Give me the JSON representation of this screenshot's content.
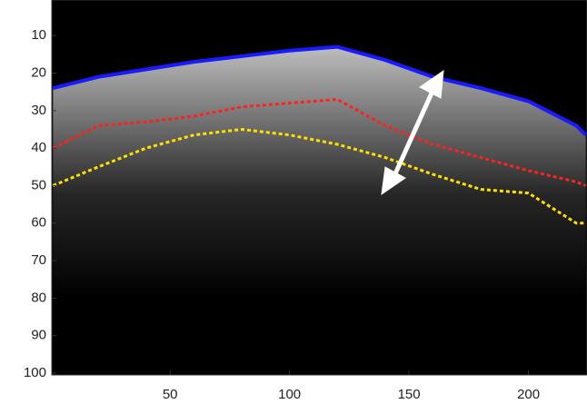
{
  "chart_data": {
    "type": "image",
    "x": [
      1,
      20,
      40,
      60,
      80,
      100,
      120,
      140,
      160,
      180,
      200,
      220,
      224
    ],
    "series": [
      {
        "color": "#1a1aff",
        "values": [
          24,
          21,
          19,
          17,
          15.5,
          14,
          13,
          16.5,
          21,
          24,
          27.5,
          34,
          36.5
        ]
      },
      {
        "color": "#ff2020",
        "values": [
          40,
          34,
          33,
          31.5,
          29,
          28,
          27,
          34,
          39,
          42.5,
          46,
          49,
          50
        ]
      },
      {
        "color": "#ffe000",
        "values": [
          50,
          45,
          40,
          36.5,
          35,
          36.5,
          39,
          42.5,
          47,
          51,
          52,
          60,
          60
        ]
      }
    ],
    "xlim": [
      0.5,
      224.5
    ],
    "ylim": [
      0.5,
      100.5
    ],
    "y_reversed": true,
    "xticks": [
      50,
      100,
      150,
      200
    ],
    "yticks": [
      10,
      20,
      30,
      40,
      50,
      60,
      70,
      80,
      90,
      100
    ]
  }
}
